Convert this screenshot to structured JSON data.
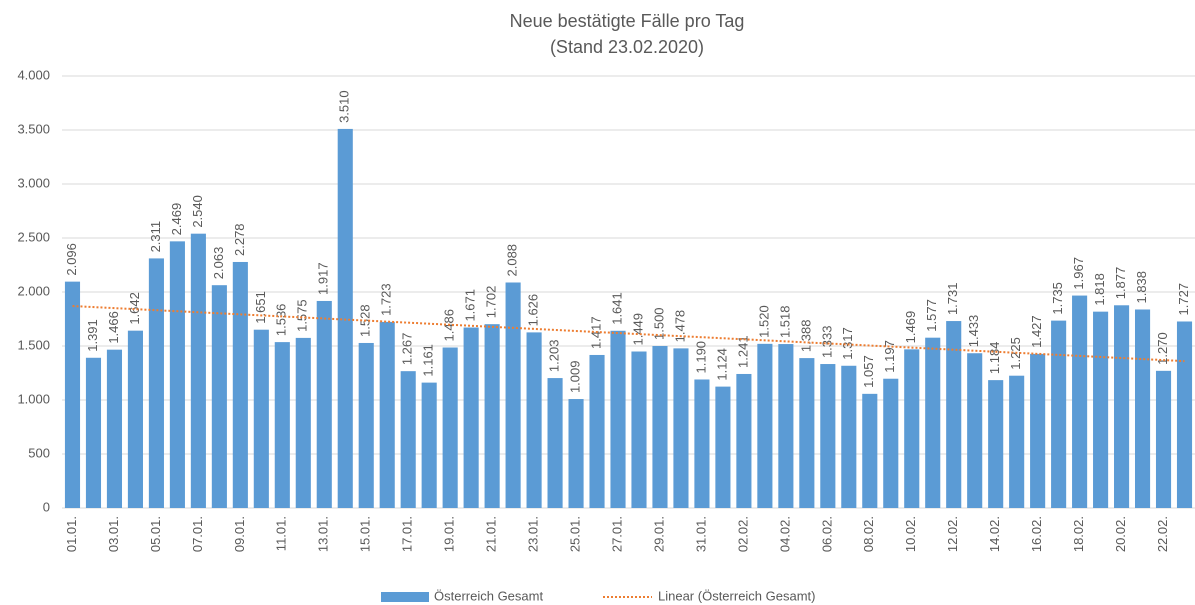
{
  "chart_data": {
    "type": "bar",
    "title": [
      "Neue bestätigte Fälle pro Tag",
      "(Stand 23.02.2020)"
    ],
    "categories": [
      "01.01.",
      null,
      "03.01.",
      null,
      "05.01.",
      null,
      "07.01.",
      null,
      "09.01.",
      null,
      "11.01.",
      null,
      "13.01.",
      null,
      "15.01.",
      null,
      "17.01.",
      null,
      "19.01.",
      null,
      "21.01.",
      null,
      "23.01.",
      null,
      "25.01.",
      null,
      "27.01.",
      null,
      "29.01.",
      null,
      "31.01.",
      null,
      "02.02.",
      null,
      "04.02.",
      null,
      "06.02.",
      null,
      "08.02.",
      null,
      "10.02.",
      null,
      "12.02.",
      null,
      "14.02.",
      null,
      "16.02.",
      null,
      "18.02.",
      null,
      "20.02.",
      null,
      "22.02.",
      null
    ],
    "series": [
      {
        "name": "Österreich Gesamt",
        "color": "#5b9bd5",
        "values": [
          2096,
          1391,
          1466,
          1642,
          2311,
          2469,
          2540,
          2063,
          2278,
          1651,
          1536,
          1575,
          1917,
          3510,
          1528,
          1723,
          1267,
          1161,
          1486,
          1671,
          1702,
          2088,
          1626,
          1203,
          1009,
          1417,
          1641,
          1449,
          1500,
          1478,
          1190,
          1124,
          1241,
          1520,
          1518,
          1388,
          1333,
          1317,
          1057,
          1197,
          1469,
          1577,
          1731,
          1433,
          1184,
          1225,
          1427,
          1735,
          1967,
          1818,
          1877,
          1838,
          1270,
          1727
        ],
        "value_labels": [
          "2.096",
          "1.391",
          "1.466",
          "1.642",
          "2.311",
          "2.469",
          "2.540",
          "2.063",
          "2.278",
          "1.651",
          "1.536",
          "1.575",
          "1.917",
          "3.510",
          "1.528",
          "1.723",
          "1.267",
          "1.161",
          "1.486",
          "1.671",
          "1.702",
          "2.088",
          "1.626",
          "1.203",
          "1.009",
          "1.417",
          "1.641",
          "1.449",
          "1.500",
          "1.478",
          "1.190",
          "1.124",
          "1.241",
          "1.520",
          "1.518",
          "1.388",
          "1.333",
          "1.317",
          "1.057",
          "1.197",
          "1.469",
          "1.577",
          "1.731",
          "1.433",
          "1.184",
          "1.225",
          "1.427",
          "1.735",
          "1.967",
          "1.818",
          "1.877",
          "1.838",
          "1.270",
          "1.727"
        ]
      }
    ],
    "trendline": {
      "name": "Linear (Österreich Gesamt)",
      "color": "#ed7d31",
      "values": [
        1870,
        1360
      ]
    },
    "ylim": [
      0,
      4000
    ],
    "yticks": [
      0,
      500,
      {
        "value": 1000,
        "label": "1.000"
      },
      {
        "value": 1500,
        "label": "1.500"
      },
      {
        "value": 2000,
        "label": "2.000"
      },
      {
        "value": 2500,
        "label": "2.500"
      },
      {
        "value": 3000,
        "label": "3.000"
      },
      {
        "value": 3500,
        "label": "3.500"
      },
      {
        "value": 4000,
        "label": "4.000"
      }
    ],
    "grid": true,
    "legend": "bottom"
  }
}
